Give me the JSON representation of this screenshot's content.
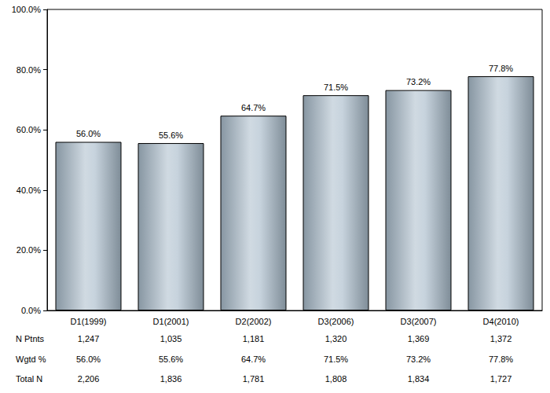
{
  "chart_data": {
    "type": "bar",
    "categories": [
      "D1(1999)",
      "D1(2001)",
      "D2(2002)",
      "D3(2006)",
      "D3(2007)",
      "D4(2010)"
    ],
    "values": [
      56.0,
      55.6,
      64.7,
      71.5,
      73.2,
      77.8
    ],
    "value_labels": [
      "56.0%",
      "55.6%",
      "64.7%",
      "71.5%",
      "73.2%",
      "77.8%"
    ],
    "data_labels": true,
    "color": "#a9bccb",
    "ylim": [
      0,
      100
    ],
    "yticks": [
      {
        "value": 0,
        "label": "0.0%"
      },
      {
        "value": 20,
        "label": "20.0%"
      },
      {
        "value": 40,
        "label": "40.0%"
      },
      {
        "value": 60,
        "label": "60.0%"
      },
      {
        "value": 80,
        "label": "80.0%"
      },
      {
        "value": 100,
        "label": "100.0%"
      }
    ],
    "grid": false,
    "table": {
      "rows": [
        {
          "label": "N Ptnts",
          "cells": [
            "1,247",
            "1,035",
            "1,181",
            "1,320",
            "1,369",
            "1,372"
          ]
        },
        {
          "label": "Wgtd %",
          "cells": [
            "56.0%",
            "55.6%",
            "64.7%",
            "71.5%",
            "73.2%",
            "77.8%"
          ]
        },
        {
          "label": "Total N",
          "cells": [
            "2,206",
            "1,836",
            "1,781",
            "1,808",
            "1,834",
            "1,727"
          ]
        }
      ]
    }
  }
}
